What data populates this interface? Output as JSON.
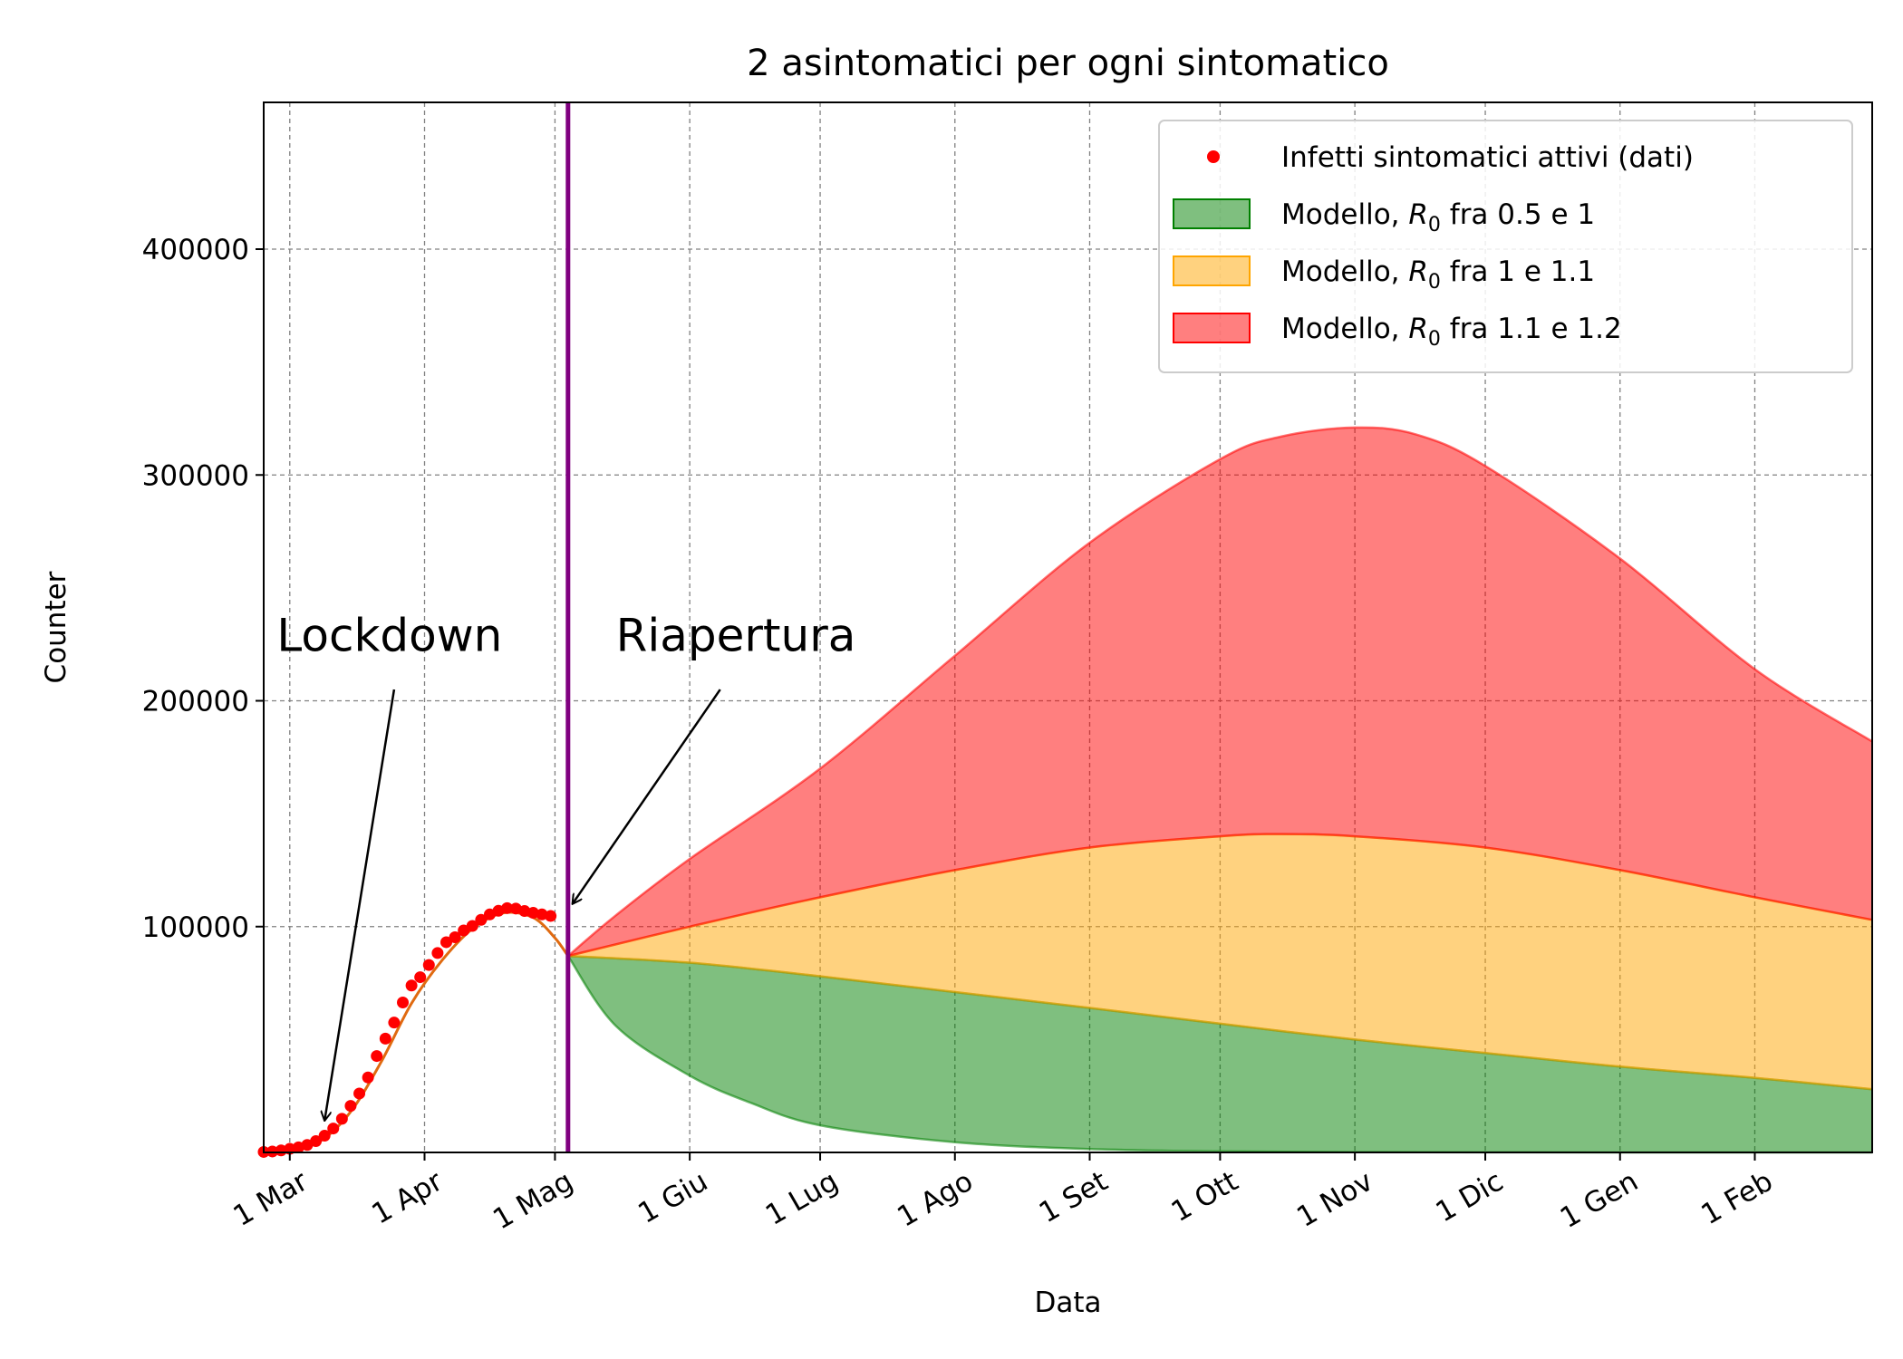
{
  "chart_data": {
    "type": "area",
    "title": "2 asintomatici per ogni sintomatico",
    "xlabel": "Data",
    "ylabel": "Counter",
    "x_range": [
      "2020-02-24",
      "2021-02-28"
    ],
    "ylim": [
      0,
      465000
    ],
    "x_ticks": [
      {
        "date": "2020-03-01",
        "label": "1 Mar"
      },
      {
        "date": "2020-04-01",
        "label": "1 Apr"
      },
      {
        "date": "2020-05-01",
        "label": "1 Mag"
      },
      {
        "date": "2020-06-01",
        "label": "1 Giu"
      },
      {
        "date": "2020-07-01",
        "label": "1 Lug"
      },
      {
        "date": "2020-08-01",
        "label": "1 Ago"
      },
      {
        "date": "2020-09-01",
        "label": "1 Set"
      },
      {
        "date": "2020-10-01",
        "label": "1 Ott"
      },
      {
        "date": "2020-11-01",
        "label": "1 Nov"
      },
      {
        "date": "2020-12-01",
        "label": "1 Dic"
      },
      {
        "date": "2021-01-01",
        "label": "1 Gen"
      },
      {
        "date": "2021-02-01",
        "label": "1 Feb"
      }
    ],
    "y_ticks": [
      100000,
      200000,
      300000,
      400000
    ],
    "grid": true,
    "legend_position": "top-right",
    "legend": [
      {
        "kind": "dot",
        "text": "Infetti sintomatici attivi (dati)",
        "color": "#ff0000"
      },
      {
        "kind": "patch",
        "prefix": "Modello, ",
        "sym": "R",
        "sub": "0",
        "suffix": " fra 0.5 e 1",
        "fill": "#008000",
        "edge": "#008000"
      },
      {
        "kind": "patch",
        "prefix": "Modello, ",
        "sym": "R",
        "sub": "0",
        "suffix": " fra 1 e 1.1",
        "fill": "#ffa500",
        "edge": "#ffa500"
      },
      {
        "kind": "patch",
        "prefix": "Modello, ",
        "sym": "R",
        "sub": "0",
        "suffix": " fra 1.1 e 1.2",
        "fill": "#ff0000",
        "edge": "#ff0000"
      }
    ],
    "reopening_date": "2020-05-04",
    "reopening_line_color": "#800080",
    "annotations": [
      {
        "text": "Lockdown",
        "text_at": {
          "date": "2020-02-27",
          "y": 222000
        },
        "arrow_from": {
          "date": "2020-03-25",
          "y": 205000
        },
        "arrow_to": {
          "date": "2020-03-09",
          "y": 14000
        }
      },
      {
        "text": "Riapertura",
        "text_at": {
          "date": "2020-05-15",
          "y": 222000
        },
        "arrow_from": {
          "date": "2020-06-08",
          "y": 205000
        },
        "arrow_to": {
          "date": "2020-05-05",
          "y": 110000
        }
      }
    ],
    "data_series": {
      "name": "Infetti sintomatici attivi (dati)",
      "color": "#ff0000",
      "points": [
        [
          "2020-02-24",
          220
        ],
        [
          "2020-02-26",
          420
        ],
        [
          "2020-02-28",
          880
        ],
        [
          "2020-03-01",
          1580
        ],
        [
          "2020-03-03",
          2260
        ],
        [
          "2020-03-05",
          3300
        ],
        [
          "2020-03-07",
          5000
        ],
        [
          "2020-03-09",
          7400
        ],
        [
          "2020-03-11",
          10600
        ],
        [
          "2020-03-13",
          14900
        ],
        [
          "2020-03-15",
          20600
        ],
        [
          "2020-03-17",
          26100
        ],
        [
          "2020-03-19",
          33200
        ],
        [
          "2020-03-21",
          42700
        ],
        [
          "2020-03-23",
          50400
        ],
        [
          "2020-03-25",
          57500
        ],
        [
          "2020-03-27",
          66400
        ],
        [
          "2020-03-29",
          73900
        ],
        [
          "2020-03-31",
          77600
        ],
        [
          "2020-04-02",
          83000
        ],
        [
          "2020-04-04",
          88300
        ],
        [
          "2020-04-06",
          93100
        ],
        [
          "2020-04-08",
          95300
        ],
        [
          "2020-04-10",
          98300
        ],
        [
          "2020-04-12",
          100300
        ],
        [
          "2020-04-14",
          103000
        ],
        [
          "2020-04-16",
          105400
        ],
        [
          "2020-04-18",
          107000
        ],
        [
          "2020-04-20",
          108200
        ],
        [
          "2020-04-22",
          108000
        ],
        [
          "2020-04-24",
          106900
        ],
        [
          "2020-04-26",
          106100
        ],
        [
          "2020-04-28",
          105400
        ],
        [
          "2020-04-30",
          104700
        ]
      ]
    },
    "model_fit": {
      "color": "#e06a10",
      "points": [
        [
          "2020-02-24",
          0
        ],
        [
          "2020-03-01",
          1200
        ],
        [
          "2020-03-08",
          5000
        ],
        [
          "2020-03-15",
          18000
        ],
        [
          "2020-03-22",
          40000
        ],
        [
          "2020-03-29",
          66000
        ],
        [
          "2020-04-05",
          85000
        ],
        [
          "2020-04-12",
          99000
        ],
        [
          "2020-04-19",
          106000
        ],
        [
          "2020-04-26",
          104000
        ],
        [
          "2020-05-01",
          95000
        ],
        [
          "2020-05-04",
          87000
        ]
      ]
    },
    "bands": [
      {
        "name": "Modello, R0 fra 0.5 e 1",
        "fill": "#008000",
        "upper": [
          [
            "2020-05-04",
            87000
          ],
          [
            "2020-06-01",
            84000
          ],
          [
            "2020-07-01",
            78000
          ],
          [
            "2020-08-01",
            71000
          ],
          [
            "2020-09-01",
            64000
          ],
          [
            "2020-10-01",
            57000
          ],
          [
            "2020-11-01",
            50000
          ],
          [
            "2020-12-01",
            44000
          ],
          [
            "2021-01-01",
            38000
          ],
          [
            "2021-02-01",
            33000
          ],
          [
            "2021-02-28",
            28000
          ]
        ],
        "lower": [
          [
            "2020-05-04",
            87000
          ],
          [
            "2020-05-15",
            56000
          ],
          [
            "2020-06-01",
            34000
          ],
          [
            "2020-06-15",
            22000
          ],
          [
            "2020-07-01",
            12000
          ],
          [
            "2020-08-01",
            4500
          ],
          [
            "2020-09-01",
            1500
          ],
          [
            "2020-10-01",
            500
          ],
          [
            "2020-11-01",
            150
          ],
          [
            "2020-12-01",
            50
          ],
          [
            "2021-01-01",
            15
          ],
          [
            "2021-02-28",
            0
          ]
        ]
      },
      {
        "name": "Modello, R0 fra 1 e 1.1",
        "fill": "#ffa500",
        "upper": [
          [
            "2020-05-04",
            87000
          ],
          [
            "2020-06-01",
            100000
          ],
          [
            "2020-07-01",
            113000
          ],
          [
            "2020-08-01",
            125000
          ],
          [
            "2020-09-01",
            135000
          ],
          [
            "2020-10-01",
            140000
          ],
          [
            "2020-10-15",
            141000
          ],
          [
            "2020-11-01",
            140000
          ],
          [
            "2020-12-01",
            135000
          ],
          [
            "2021-01-01",
            125000
          ],
          [
            "2021-02-01",
            113000
          ],
          [
            "2021-02-28",
            103000
          ]
        ],
        "lower": [
          [
            "2020-05-04",
            87000
          ],
          [
            "2020-06-01",
            84000
          ],
          [
            "2020-07-01",
            78000
          ],
          [
            "2020-08-01",
            71000
          ],
          [
            "2020-09-01",
            64000
          ],
          [
            "2020-10-01",
            57000
          ],
          [
            "2020-11-01",
            50000
          ],
          [
            "2020-12-01",
            44000
          ],
          [
            "2021-01-01",
            38000
          ],
          [
            "2021-02-01",
            33000
          ],
          [
            "2021-02-28",
            28000
          ]
        ]
      },
      {
        "name": "Modello, R0 fra 1.1 e 1.2",
        "fill": "#ff0000",
        "upper": [
          [
            "2020-05-04",
            87000
          ],
          [
            "2020-05-15",
            105000
          ],
          [
            "2020-06-01",
            130000
          ],
          [
            "2020-07-01",
            170000
          ],
          [
            "2020-08-01",
            220000
          ],
          [
            "2020-09-01",
            270000
          ],
          [
            "2020-10-01",
            307000
          ],
          [
            "2020-10-15",
            317000
          ],
          [
            "2020-11-01",
            321000
          ],
          [
            "2020-11-15",
            318000
          ],
          [
            "2020-12-01",
            304000
          ],
          [
            "2021-01-01",
            263000
          ],
          [
            "2021-02-01",
            214000
          ],
          [
            "2021-02-28",
            182000
          ]
        ],
        "lower": [
          [
            "2020-05-04",
            87000
          ],
          [
            "2020-06-01",
            100000
          ],
          [
            "2020-07-01",
            113000
          ],
          [
            "2020-08-01",
            125000
          ],
          [
            "2020-09-01",
            135000
          ],
          [
            "2020-10-01",
            140000
          ],
          [
            "2020-10-15",
            141000
          ],
          [
            "2020-11-01",
            140000
          ],
          [
            "2020-12-01",
            135000
          ],
          [
            "2021-01-01",
            125000
          ],
          [
            "2021-02-01",
            113000
          ],
          [
            "2021-02-28",
            103000
          ]
        ]
      }
    ]
  }
}
